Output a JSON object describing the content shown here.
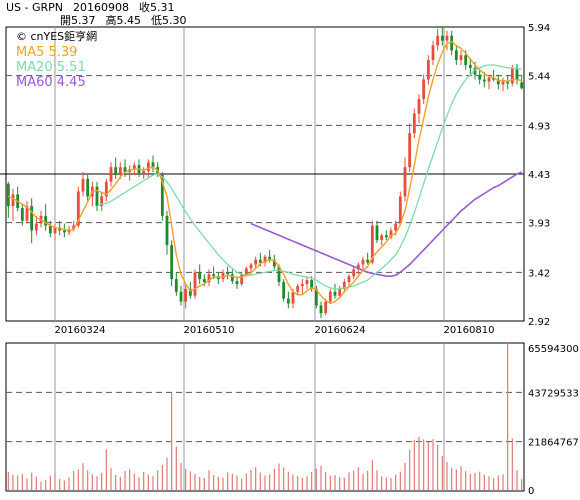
{
  "header": {
    "ticker": "US - GRPN",
    "date": "20160908",
    "close_label": "收5.31",
    "open_label": "開5.37",
    "high_label": "高5.45",
    "low_label": "低5.30"
  },
  "chart_data": [
    {
      "type": "candlestick",
      "watermark": "© cnYES鉅亨網",
      "legend": [
        {
          "label": "MA5 5.39",
          "color": "#f5a02a"
        },
        {
          "label": "MA20 5.51",
          "color": "#7ddca8"
        },
        {
          "label": "MA60 4.45",
          "color": "#9b59d6"
        }
      ],
      "y_ticks": [
        "5.94",
        "5.44",
        "4.93",
        "4.43",
        "3.93",
        "3.42",
        "2.92"
      ],
      "ylim": [
        2.92,
        5.94
      ],
      "x_ticks": [
        "20160324",
        "20160510",
        "20160624",
        "20160810"
      ],
      "reference_line": 4.43,
      "candle_up_color": "#e74c3c",
      "candle_down_color": "#1f8a2a",
      "ohlc": [
        [
          4.33,
          4.35,
          3.98,
          4.1
        ],
        [
          4.1,
          4.28,
          3.95,
          4.22
        ],
        [
          4.22,
          4.3,
          4.05,
          4.08
        ],
        [
          4.08,
          4.12,
          3.9,
          3.95
        ],
        [
          3.95,
          4.15,
          3.92,
          4.1
        ],
        [
          4.1,
          4.18,
          3.72,
          3.85
        ],
        [
          3.85,
          4.0,
          3.8,
          3.92
        ],
        [
          3.92,
          4.05,
          3.88,
          4.0
        ],
        [
          4.0,
          4.12,
          3.85,
          3.9
        ],
        [
          3.9,
          3.95,
          3.78,
          3.82
        ],
        [
          3.82,
          3.92,
          3.75,
          3.88
        ],
        [
          3.88,
          3.95,
          3.8,
          3.85
        ],
        [
          3.85,
          3.92,
          3.78,
          3.83
        ],
        [
          3.83,
          3.9,
          3.8,
          3.86
        ],
        [
          3.86,
          3.95,
          3.84,
          3.9
        ],
        [
          3.9,
          4.3,
          3.88,
          4.25
        ],
        [
          4.25,
          4.45,
          4.2,
          4.38
        ],
        [
          4.38,
          4.42,
          4.15,
          4.2
        ],
        [
          4.2,
          4.35,
          4.1,
          4.3
        ],
        [
          4.3,
          4.35,
          4.05,
          4.1
        ],
        [
          4.1,
          4.25,
          4.05,
          4.2
        ],
        [
          4.2,
          4.38,
          4.15,
          4.35
        ],
        [
          4.35,
          4.55,
          4.3,
          4.5
        ],
        [
          4.5,
          4.6,
          4.38,
          4.42
        ],
        [
          4.42,
          4.55,
          4.38,
          4.5
        ],
        [
          4.5,
          4.58,
          4.4,
          4.45
        ],
        [
          4.45,
          4.52,
          4.36,
          4.48
        ],
        [
          4.48,
          4.55,
          4.42,
          4.52
        ],
        [
          4.52,
          4.58,
          4.4,
          4.44
        ],
        [
          4.44,
          4.5,
          4.38,
          4.46
        ],
        [
          4.46,
          4.58,
          4.4,
          4.55
        ],
        [
          4.55,
          4.62,
          4.45,
          4.5
        ],
        [
          4.5,
          4.55,
          4.4,
          4.42
        ],
        [
          4.42,
          4.45,
          3.95,
          4.0
        ],
        [
          4.0,
          4.05,
          3.6,
          3.7
        ],
        [
          3.7,
          3.75,
          3.28,
          3.35
        ],
        [
          3.35,
          3.42,
          3.18,
          3.22
        ],
        [
          3.22,
          3.28,
          3.08,
          3.12
        ],
        [
          3.12,
          3.3,
          3.05,
          3.25
        ],
        [
          3.25,
          3.32,
          3.15,
          3.18
        ],
        [
          3.18,
          3.45,
          3.15,
          3.42
        ],
        [
          3.42,
          3.5,
          3.3,
          3.35
        ],
        [
          3.35,
          3.4,
          3.28,
          3.32
        ],
        [
          3.32,
          3.45,
          3.28,
          3.4
        ],
        [
          3.4,
          3.48,
          3.35,
          3.38
        ],
        [
          3.38,
          3.42,
          3.3,
          3.35
        ],
        [
          3.35,
          3.45,
          3.32,
          3.42
        ],
        [
          3.42,
          3.48,
          3.35,
          3.4
        ],
        [
          3.4,
          3.45,
          3.3,
          3.33
        ],
        [
          3.33,
          3.38,
          3.25,
          3.3
        ],
        [
          3.3,
          3.42,
          3.28,
          3.4
        ],
        [
          3.4,
          3.48,
          3.38,
          3.46
        ],
        [
          3.46,
          3.52,
          3.4,
          3.5
        ],
        [
          3.5,
          3.58,
          3.45,
          3.55
        ],
        [
          3.55,
          3.62,
          3.48,
          3.52
        ],
        [
          3.52,
          3.6,
          3.48,
          3.58
        ],
        [
          3.58,
          3.65,
          3.52,
          3.55
        ],
        [
          3.55,
          3.6,
          3.45,
          3.48
        ],
        [
          3.48,
          3.5,
          3.28,
          3.32
        ],
        [
          3.32,
          3.35,
          3.12,
          3.15
        ],
        [
          3.15,
          3.22,
          3.05,
          3.1
        ],
        [
          3.1,
          3.25,
          3.05,
          3.22
        ],
        [
          3.22,
          3.3,
          3.18,
          3.28
        ],
        [
          3.28,
          3.35,
          3.2,
          3.3
        ],
        [
          3.3,
          3.38,
          3.25,
          3.34
        ],
        [
          3.34,
          3.38,
          3.22,
          3.25
        ],
        [
          3.25,
          3.28,
          3.05,
          3.08
        ],
        [
          3.08,
          3.12,
          2.95,
          3.0
        ],
        [
          3.0,
          3.15,
          2.98,
          3.12
        ],
        [
          3.12,
          3.25,
          3.1,
          3.22
        ],
        [
          3.22,
          3.3,
          3.15,
          3.18
        ],
        [
          3.18,
          3.28,
          3.15,
          3.25
        ],
        [
          3.25,
          3.35,
          3.22,
          3.32
        ],
        [
          3.32,
          3.4,
          3.28,
          3.38
        ],
        [
          3.38,
          3.48,
          3.35,
          3.45
        ],
        [
          3.45,
          3.52,
          3.4,
          3.5
        ],
        [
          3.5,
          3.58,
          3.45,
          3.55
        ],
        [
          3.55,
          3.62,
          3.5,
          3.52
        ],
        [
          3.52,
          3.95,
          3.5,
          3.9
        ],
        [
          3.9,
          3.95,
          3.72,
          3.75
        ],
        [
          3.75,
          3.82,
          3.7,
          3.8
        ],
        [
          3.8,
          3.85,
          3.75,
          3.78
        ],
        [
          3.78,
          3.88,
          3.76,
          3.85
        ],
        [
          3.85,
          3.95,
          3.8,
          3.92
        ],
        [
          3.92,
          4.25,
          3.9,
          4.2
        ],
        [
          4.2,
          4.6,
          4.15,
          4.5
        ],
        [
          4.5,
          4.95,
          4.45,
          4.85
        ],
        [
          4.85,
          5.1,
          4.8,
          5.05
        ],
        [
          5.05,
          5.25,
          4.95,
          5.2
        ],
        [
          5.2,
          5.45,
          5.15,
          5.4
        ],
        [
          5.4,
          5.65,
          5.35,
          5.6
        ],
        [
          5.6,
          5.8,
          5.55,
          5.75
        ],
        [
          5.75,
          5.92,
          5.7,
          5.85
        ],
        [
          5.85,
          5.94,
          5.75,
          5.8
        ],
        [
          5.8,
          5.9,
          5.7,
          5.85
        ],
        [
          5.85,
          5.9,
          5.65,
          5.7
        ],
        [
          5.7,
          5.75,
          5.55,
          5.6
        ],
        [
          5.6,
          5.7,
          5.55,
          5.65
        ],
        [
          5.65,
          5.7,
          5.5,
          5.55
        ],
        [
          5.55,
          5.62,
          5.45,
          5.52
        ],
        [
          5.52,
          5.58,
          5.4,
          5.45
        ],
        [
          5.45,
          5.5,
          5.35,
          5.4
        ],
        [
          5.4,
          5.48,
          5.32,
          5.38
        ],
        [
          5.38,
          5.45,
          5.3,
          5.42
        ],
        [
          5.42,
          5.5,
          5.38,
          5.4
        ],
        [
          5.4,
          5.45,
          5.3,
          5.35
        ],
        [
          5.35,
          5.42,
          5.28,
          5.38
        ],
        [
          5.38,
          5.45,
          5.3,
          5.36
        ],
        [
          5.36,
          5.55,
          5.33,
          5.52
        ],
        [
          5.52,
          5.56,
          5.35,
          5.4
        ],
        [
          5.37,
          5.45,
          5.3,
          5.31
        ]
      ],
      "ma5": [
        4.2,
        4.18,
        4.15,
        4.12,
        4.09,
        4.04,
        3.98,
        3.96,
        3.93,
        3.9,
        3.88,
        3.87,
        3.86,
        3.85,
        3.86,
        3.95,
        4.05,
        4.14,
        4.25,
        4.26,
        4.24,
        4.22,
        4.27,
        4.33,
        4.4,
        4.45,
        4.47,
        4.48,
        4.48,
        4.47,
        4.49,
        4.5,
        4.47,
        4.35,
        4.2,
        3.9,
        3.6,
        3.4,
        3.3,
        3.23,
        3.25,
        3.28,
        3.3,
        3.34,
        3.37,
        3.37,
        3.37,
        3.39,
        3.38,
        3.37,
        3.37,
        3.39,
        3.42,
        3.46,
        3.51,
        3.53,
        3.55,
        3.54,
        3.48,
        3.4,
        3.3,
        3.22,
        3.19,
        3.19,
        3.23,
        3.26,
        3.24,
        3.18,
        3.13,
        3.1,
        3.12,
        3.16,
        3.22,
        3.27,
        3.32,
        3.38,
        3.44,
        3.48,
        3.57,
        3.63,
        3.68,
        3.73,
        3.8,
        3.82,
        3.91,
        4.05,
        4.28,
        4.52,
        4.78,
        5.0,
        5.22,
        5.4,
        5.56,
        5.68,
        5.77,
        5.79,
        5.75,
        5.72,
        5.67,
        5.61,
        5.55,
        5.5,
        5.46,
        5.43,
        5.42,
        5.39,
        5.39,
        5.38,
        5.4,
        5.4,
        5.39
      ],
      "ma20": [
        null,
        null,
        null,
        null,
        null,
        null,
        null,
        null,
        null,
        null,
        null,
        null,
        null,
        null,
        null,
        null,
        null,
        null,
        null,
        4.1,
        4.12,
        4.13,
        4.15,
        4.18,
        4.21,
        4.24,
        4.27,
        4.3,
        4.33,
        4.36,
        4.39,
        4.42,
        4.43,
        4.4,
        4.35,
        4.28,
        4.2,
        4.12,
        4.04,
        3.97,
        3.9,
        3.84,
        3.78,
        3.72,
        3.66,
        3.6,
        3.55,
        3.5,
        3.46,
        3.42,
        3.4,
        3.39,
        3.39,
        3.4,
        3.41,
        3.42,
        3.43,
        3.44,
        3.44,
        3.43,
        3.42,
        3.4,
        3.39,
        3.38,
        3.37,
        3.36,
        3.34,
        3.31,
        3.28,
        3.26,
        3.25,
        3.25,
        3.26,
        3.27,
        3.28,
        3.3,
        3.32,
        3.34,
        3.38,
        3.42,
        3.46,
        3.5,
        3.55,
        3.6,
        3.68,
        3.78,
        3.9,
        4.03,
        4.18,
        4.33,
        4.48,
        4.62,
        4.76,
        4.9,
        5.03,
        5.15,
        5.25,
        5.33,
        5.4,
        5.45,
        5.5,
        5.52,
        5.54,
        5.55,
        5.55,
        5.54,
        5.53,
        5.52,
        5.52,
        5.51,
        5.51
      ],
      "ma60": [
        null,
        null,
        null,
        null,
        null,
        null,
        null,
        null,
        null,
        null,
        null,
        null,
        null,
        null,
        null,
        null,
        null,
        null,
        null,
        null,
        null,
        null,
        null,
        null,
        null,
        null,
        null,
        null,
        null,
        null,
        null,
        null,
        null,
        null,
        null,
        null,
        null,
        null,
        null,
        null,
        null,
        null,
        null,
        null,
        null,
        null,
        null,
        null,
        null,
        null,
        null,
        null,
        3.92,
        3.9,
        3.88,
        3.86,
        3.84,
        3.82,
        3.8,
        3.78,
        3.76,
        3.74,
        3.72,
        3.7,
        3.68,
        3.66,
        3.64,
        3.62,
        3.6,
        3.58,
        3.56,
        3.54,
        3.52,
        3.5,
        3.48,
        3.46,
        3.44,
        3.42,
        3.41,
        3.4,
        3.39,
        3.38,
        3.38,
        3.39,
        3.42,
        3.46,
        3.5,
        3.55,
        3.6,
        3.65,
        3.7,
        3.75,
        3.8,
        3.85,
        3.9,
        3.95,
        4.0,
        4.05,
        4.09,
        4.13,
        4.17,
        4.2,
        4.23,
        4.26,
        4.29,
        4.31,
        4.34,
        4.37,
        4.4,
        4.43,
        4.45
      ]
    },
    {
      "type": "bar",
      "y_ticks": [
        "65594300",
        "43729533",
        "21864767",
        "0"
      ],
      "ylim": [
        0,
        65594300
      ],
      "bar_color": "#e07a7a",
      "values": [
        8.5,
        7.2,
        6.8,
        7.5,
        5.6,
        8.1,
        6.4,
        4.2,
        5.0,
        6.9,
        7.8,
        5.3,
        4.6,
        6.1,
        8.8,
        9.5,
        12.3,
        9.1,
        7.4,
        6.5,
        8.0,
        18.5,
        10.2,
        7.1,
        6.3,
        8.9,
        9.6,
        7.7,
        6.0,
        8.4,
        7.3,
        6.6,
        9.2,
        11.5,
        14.8,
        43.5,
        19.6,
        12.4,
        9.8,
        8.7,
        7.5,
        6.2,
        5.8,
        9.1,
        7.0,
        6.4,
        5.9,
        8.2,
        7.6,
        6.8,
        5.5,
        7.9,
        9.3,
        10.6,
        8.1,
        6.9,
        7.4,
        9.8,
        12.2,
        10.4,
        8.6,
        7.3,
        6.7,
        5.8,
        6.5,
        8.4,
        9.9,
        11.2,
        8.5,
        6.8,
        7.1,
        6.2,
        5.9,
        8.3,
        9.0,
        10.5,
        7.6,
        8.9,
        13.8,
        9.2,
        6.5,
        6.0,
        5.7,
        7.2,
        8.6,
        12.5,
        18.4,
        22.6,
        24.1,
        22.9,
        21.8,
        23.0,
        20.4,
        15.5,
        12.8,
        10.2,
        9.6,
        11.0,
        8.8,
        7.5,
        7.9,
        8.6,
        7.2,
        6.5,
        5.8,
        6.9,
        7.4,
        65.6,
        23.4,
        9.1,
        5.2
      ]
    }
  ]
}
